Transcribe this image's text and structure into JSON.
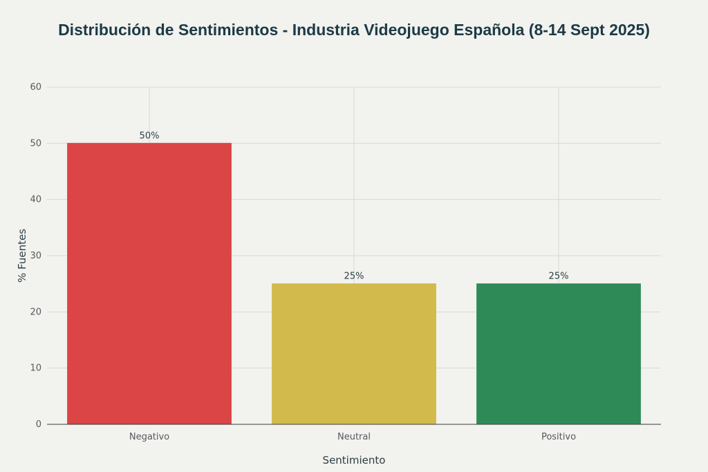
{
  "chart_data": {
    "type": "bar",
    "title": "Distribución de Sentimientos - Industria Videojuego Española (8-14 Sept 2025)",
    "xlabel": "Sentimiento",
    "ylabel": "% Fuentes",
    "categories": [
      "Negativo",
      "Neutral",
      "Positivo"
    ],
    "values": [
      50,
      25,
      25
    ],
    "data_labels": [
      "50%",
      "25%",
      "25%"
    ],
    "colors": [
      "#db4545",
      "#d2ba4c",
      "#2e8b57"
    ],
    "ylim": [
      0,
      60
    ],
    "yticks": [
      0,
      10,
      20,
      30,
      40,
      50,
      60
    ],
    "grid": true,
    "legend": "none"
  }
}
